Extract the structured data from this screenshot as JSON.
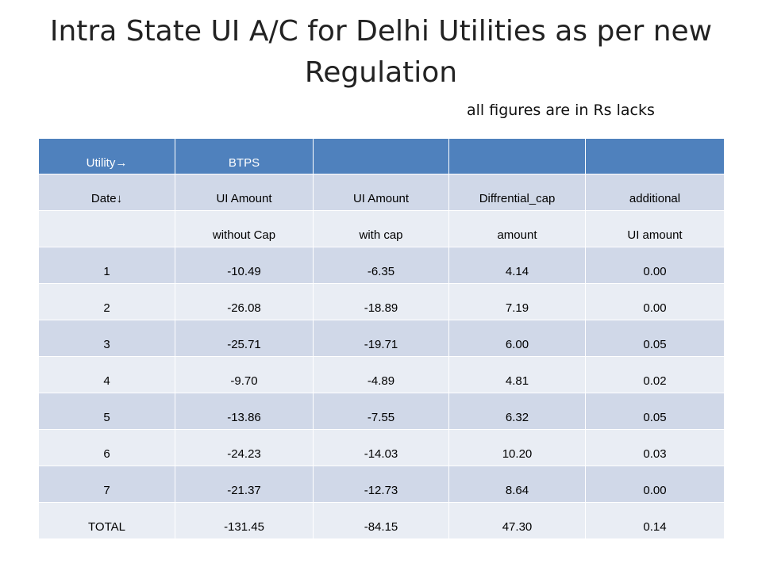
{
  "page": {
    "title": "Intra State UI A/C for Delhi Utilities as per new Regulation",
    "note": "all figures are in Rs lacks"
  },
  "table": {
    "header_row": [
      "Utility→",
      "BTPS",
      "",
      "",
      ""
    ],
    "sub_header_1": [
      "Date↓",
      "UI Amount",
      "UI Amount",
      "Diffrential_cap",
      "additional"
    ],
    "sub_header_2": [
      "",
      "without Cap",
      "with cap",
      "amount",
      "UI amount"
    ],
    "rows": [
      [
        "1",
        "-10.49",
        "-6.35",
        "4.14",
        "0.00"
      ],
      [
        "2",
        "-26.08",
        "-18.89",
        "7.19",
        "0.00"
      ],
      [
        "3",
        "-25.71",
        "-19.71",
        "6.00",
        "0.05"
      ],
      [
        "4",
        "-9.70",
        "-4.89",
        "4.81",
        "0.02"
      ],
      [
        "5",
        "-13.86",
        "-7.55",
        "6.32",
        "0.05"
      ],
      [
        "6",
        "-24.23",
        "-14.03",
        "10.20",
        "0.03"
      ],
      [
        "7",
        "-21.37",
        "-12.73",
        "8.64",
        "0.00"
      ]
    ],
    "total_row": [
      "TOTAL",
      "-131.45",
      "-84.15",
      "47.30",
      "0.14"
    ]
  },
  "colors": {
    "header_bg": "#4f81bd",
    "band_bg": "#d0d8e8",
    "plain_bg": "#e9edf4"
  }
}
